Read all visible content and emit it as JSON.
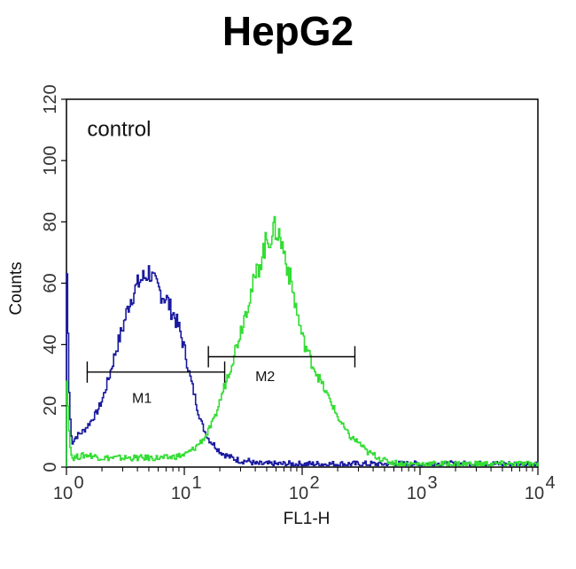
{
  "chart_data": {
    "type": "line",
    "title": "HepG2",
    "xlabel": "FL1-H",
    "ylabel": "Counts",
    "x_scale": "log",
    "xlim": [
      1,
      10000
    ],
    "ylim": [
      0,
      120
    ],
    "x_ticks": [
      {
        "value": 1,
        "base": "10",
        "exp": "0"
      },
      {
        "value": 10,
        "base": "10",
        "exp": "1"
      },
      {
        "value": 100,
        "base": "10",
        "exp": "2"
      },
      {
        "value": 1000,
        "base": "10",
        "exp": "3"
      },
      {
        "value": 10000,
        "base": "10",
        "exp": "4"
      }
    ],
    "y_ticks": [
      "0",
      "20",
      "40",
      "60",
      "80",
      "100",
      "120"
    ],
    "grid": false,
    "legend": "none",
    "annotations": [
      {
        "text": "control",
        "x": 1.5,
        "y": 108
      },
      {
        "text": "M1",
        "x": 3.6,
        "y": 21
      },
      {
        "text": "M2",
        "x": 40,
        "y": 28
      }
    ],
    "markers": [
      {
        "name": "M1",
        "x_start": 1.5,
        "x_end": 22,
        "y": 31
      },
      {
        "name": "M2",
        "x_start": 16,
        "x_end": 280,
        "y": 36
      }
    ],
    "series": [
      {
        "color": "#1a1aa0",
        "x": [
          1.0,
          1.05,
          1.1,
          1.2,
          1.4,
          1.6,
          1.8,
          2.0,
          2.3,
          2.6,
          3.0,
          3.4,
          3.8,
          4.2,
          4.6,
          5.0,
          5.5,
          6.0,
          6.5,
          7.0,
          7.5,
          8.0,
          9.0,
          10,
          11,
          12,
          13,
          14,
          15,
          16,
          18,
          20,
          22,
          25,
          30,
          35,
          40,
          50,
          60,
          80,
          100,
          150,
          200,
          300,
          500,
          700,
          1000,
          2000,
          3000,
          5000,
          7000,
          10000
        ],
        "y": [
          63,
          20,
          8,
          10,
          12,
          15,
          18,
          22,
          30,
          38,
          46,
          54,
          58,
          61,
          62,
          64,
          60,
          58,
          56,
          55,
          52,
          50,
          45,
          38,
          30,
          24,
          18,
          14,
          11,
          9,
          7,
          5,
          4,
          3,
          2,
          2,
          1,
          1,
          1,
          1,
          1,
          1,
          1,
          1,
          1,
          1,
          1,
          1,
          1,
          1,
          1,
          1
        ]
      },
      {
        "color": "#33dd33",
        "x": [
          1.0,
          1.05,
          1.1,
          1.5,
          2,
          3,
          4,
          5,
          7,
          10,
          12,
          15,
          18,
          20,
          25,
          30,
          35,
          40,
          45,
          50,
          55,
          60,
          65,
          70,
          80,
          90,
          100,
          120,
          150,
          180,
          200,
          250,
          300,
          350,
          400,
          500,
          700,
          1000,
          2000,
          3000,
          5000,
          7000,
          10000
        ],
        "y": [
          28,
          10,
          3,
          4,
          3,
          3,
          3,
          3,
          3,
          4,
          6,
          10,
          16,
          22,
          34,
          45,
          55,
          62,
          69,
          74,
          76,
          78,
          74,
          70,
          60,
          50,
          42,
          34,
          26,
          20,
          16,
          10,
          8,
          5,
          4,
          2,
          1,
          1,
          1,
          1,
          1,
          1,
          1
        ]
      }
    ]
  }
}
